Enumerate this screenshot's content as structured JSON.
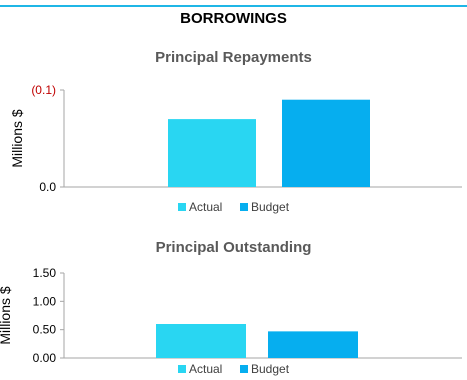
{
  "section_title": "BORROWINGS",
  "colors": {
    "actual": "#29d6f2",
    "budget": "#06aeef",
    "rule": "#1fb6e6",
    "negative_tick": "#c00000"
  },
  "chart_data": [
    {
      "type": "bar",
      "title": "Principal Repayments",
      "ylabel": "Millions $",
      "categories": [
        ""
      ],
      "ylim": [
        0.0,
        -0.1
      ],
      "yticks": [
        0.0,
        -0.1
      ],
      "ytick_labels": [
        "0.0",
        "(0.1)"
      ],
      "series": [
        {
          "name": "Actual",
          "values": [
            -0.07
          ]
        },
        {
          "name": "Budget",
          "values": [
            -0.09
          ]
        }
      ],
      "legend": "bottom"
    },
    {
      "type": "bar",
      "title": "Principal Outstanding",
      "ylabel": "Millions $",
      "categories": [
        ""
      ],
      "ylim": [
        0.0,
        1.5
      ],
      "yticks": [
        0.0,
        0.5,
        1.0,
        1.5
      ],
      "ytick_labels": [
        "0.00",
        "0.50",
        "1.00",
        "1.50"
      ],
      "series": [
        {
          "name": "Actual",
          "values": [
            0.6
          ]
        },
        {
          "name": "Budget",
          "values": [
            0.47
          ]
        }
      ],
      "legend": "bottom"
    }
  ]
}
